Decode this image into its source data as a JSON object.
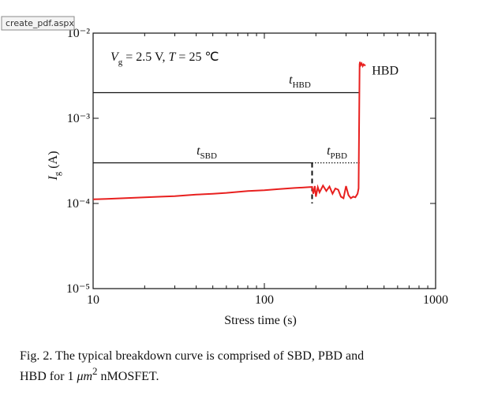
{
  "tab_label": "create_pdf.aspx",
  "chart_data": {
    "type": "line",
    "xlabel": "Stress time (s)",
    "ylabel": {
      "symbol": "I",
      "sub": "g",
      "unit": " (A)"
    },
    "condition": {
      "v": "V",
      "v_sub": "g",
      "v_text": " = 2.5 V, ",
      "t": "T",
      "t_text": " = 25 ℃"
    },
    "log_x": true,
    "log_y": true,
    "xlim": [
      10,
      1000
    ],
    "ylim": [
      1e-05,
      0.01
    ],
    "xticks": [
      10,
      100,
      1000
    ],
    "xminorticks": [
      20,
      30,
      40,
      50,
      60,
      70,
      80,
      90,
      200,
      300,
      400,
      500,
      600,
      700,
      800,
      900
    ],
    "yticks": [
      {
        "value": 1e-05,
        "label": "10⁻⁵"
      },
      {
        "value": 0.0001,
        "label": "10⁻⁴"
      },
      {
        "value": 0.001,
        "label": "10⁻³"
      },
      {
        "value": 0.01,
        "label": "10⁻²"
      }
    ],
    "x": [
      10,
      12,
      15,
      20,
      25,
      30,
      40,
      50,
      60,
      80,
      100,
      120,
      150,
      180,
      190,
      193,
      197,
      200,
      205,
      210,
      220,
      230,
      240,
      250,
      260,
      270,
      280,
      290,
      300,
      310,
      320,
      330,
      340,
      350,
      355,
      360,
      362,
      365,
      370,
      375,
      380,
      385,
      390
    ],
    "series": [
      {
        "name": "Ig",
        "color": "#e8201f",
        "values": [
          0.000112,
          0.000113,
          0.000115,
          0.000118,
          0.00012,
          0.000122,
          0.000127,
          0.00013,
          0.000133,
          0.00014,
          0.000143,
          0.000147,
          0.000152,
          0.000155,
          0.000156,
          0.00013,
          0.00016,
          0.00012,
          0.000155,
          0.000135,
          0.000162,
          0.00014,
          0.000158,
          0.00013,
          0.00015,
          0.000145,
          0.00012,
          0.000115,
          0.00016,
          0.000125,
          0.000115,
          0.00012,
          0.000118,
          0.00013,
          0.00015,
          0.0043,
          0.0046,
          0.0042,
          0.0044,
          0.0041,
          0.0043,
          0.0042,
          0.0042
        ]
      }
    ],
    "annotations": [
      {
        "label": "t",
        "sub": "HBD",
        "y": 0.002,
        "x": [
          10,
          360
        ],
        "style": "solid"
      },
      {
        "label": "t",
        "sub": "SBD",
        "y": 0.0003,
        "x": [
          10,
          190
        ],
        "style": "solid"
      },
      {
        "label": "t",
        "sub": "PBD",
        "y": 0.0003,
        "x": [
          190,
          360
        ],
        "style": "dotted"
      }
    ],
    "marker": {
      "x": 190,
      "y": [
        0.0003,
        0.0001
      ]
    },
    "end_label": "HBD"
  },
  "caption": {
    "line1": "Fig. 2. The typical breakdown curve is comprised of SBD, PBD and",
    "line2a": "HBD for 1 ",
    "unit": "μm",
    "sup": "2",
    "line2b": " nMOSFET."
  }
}
